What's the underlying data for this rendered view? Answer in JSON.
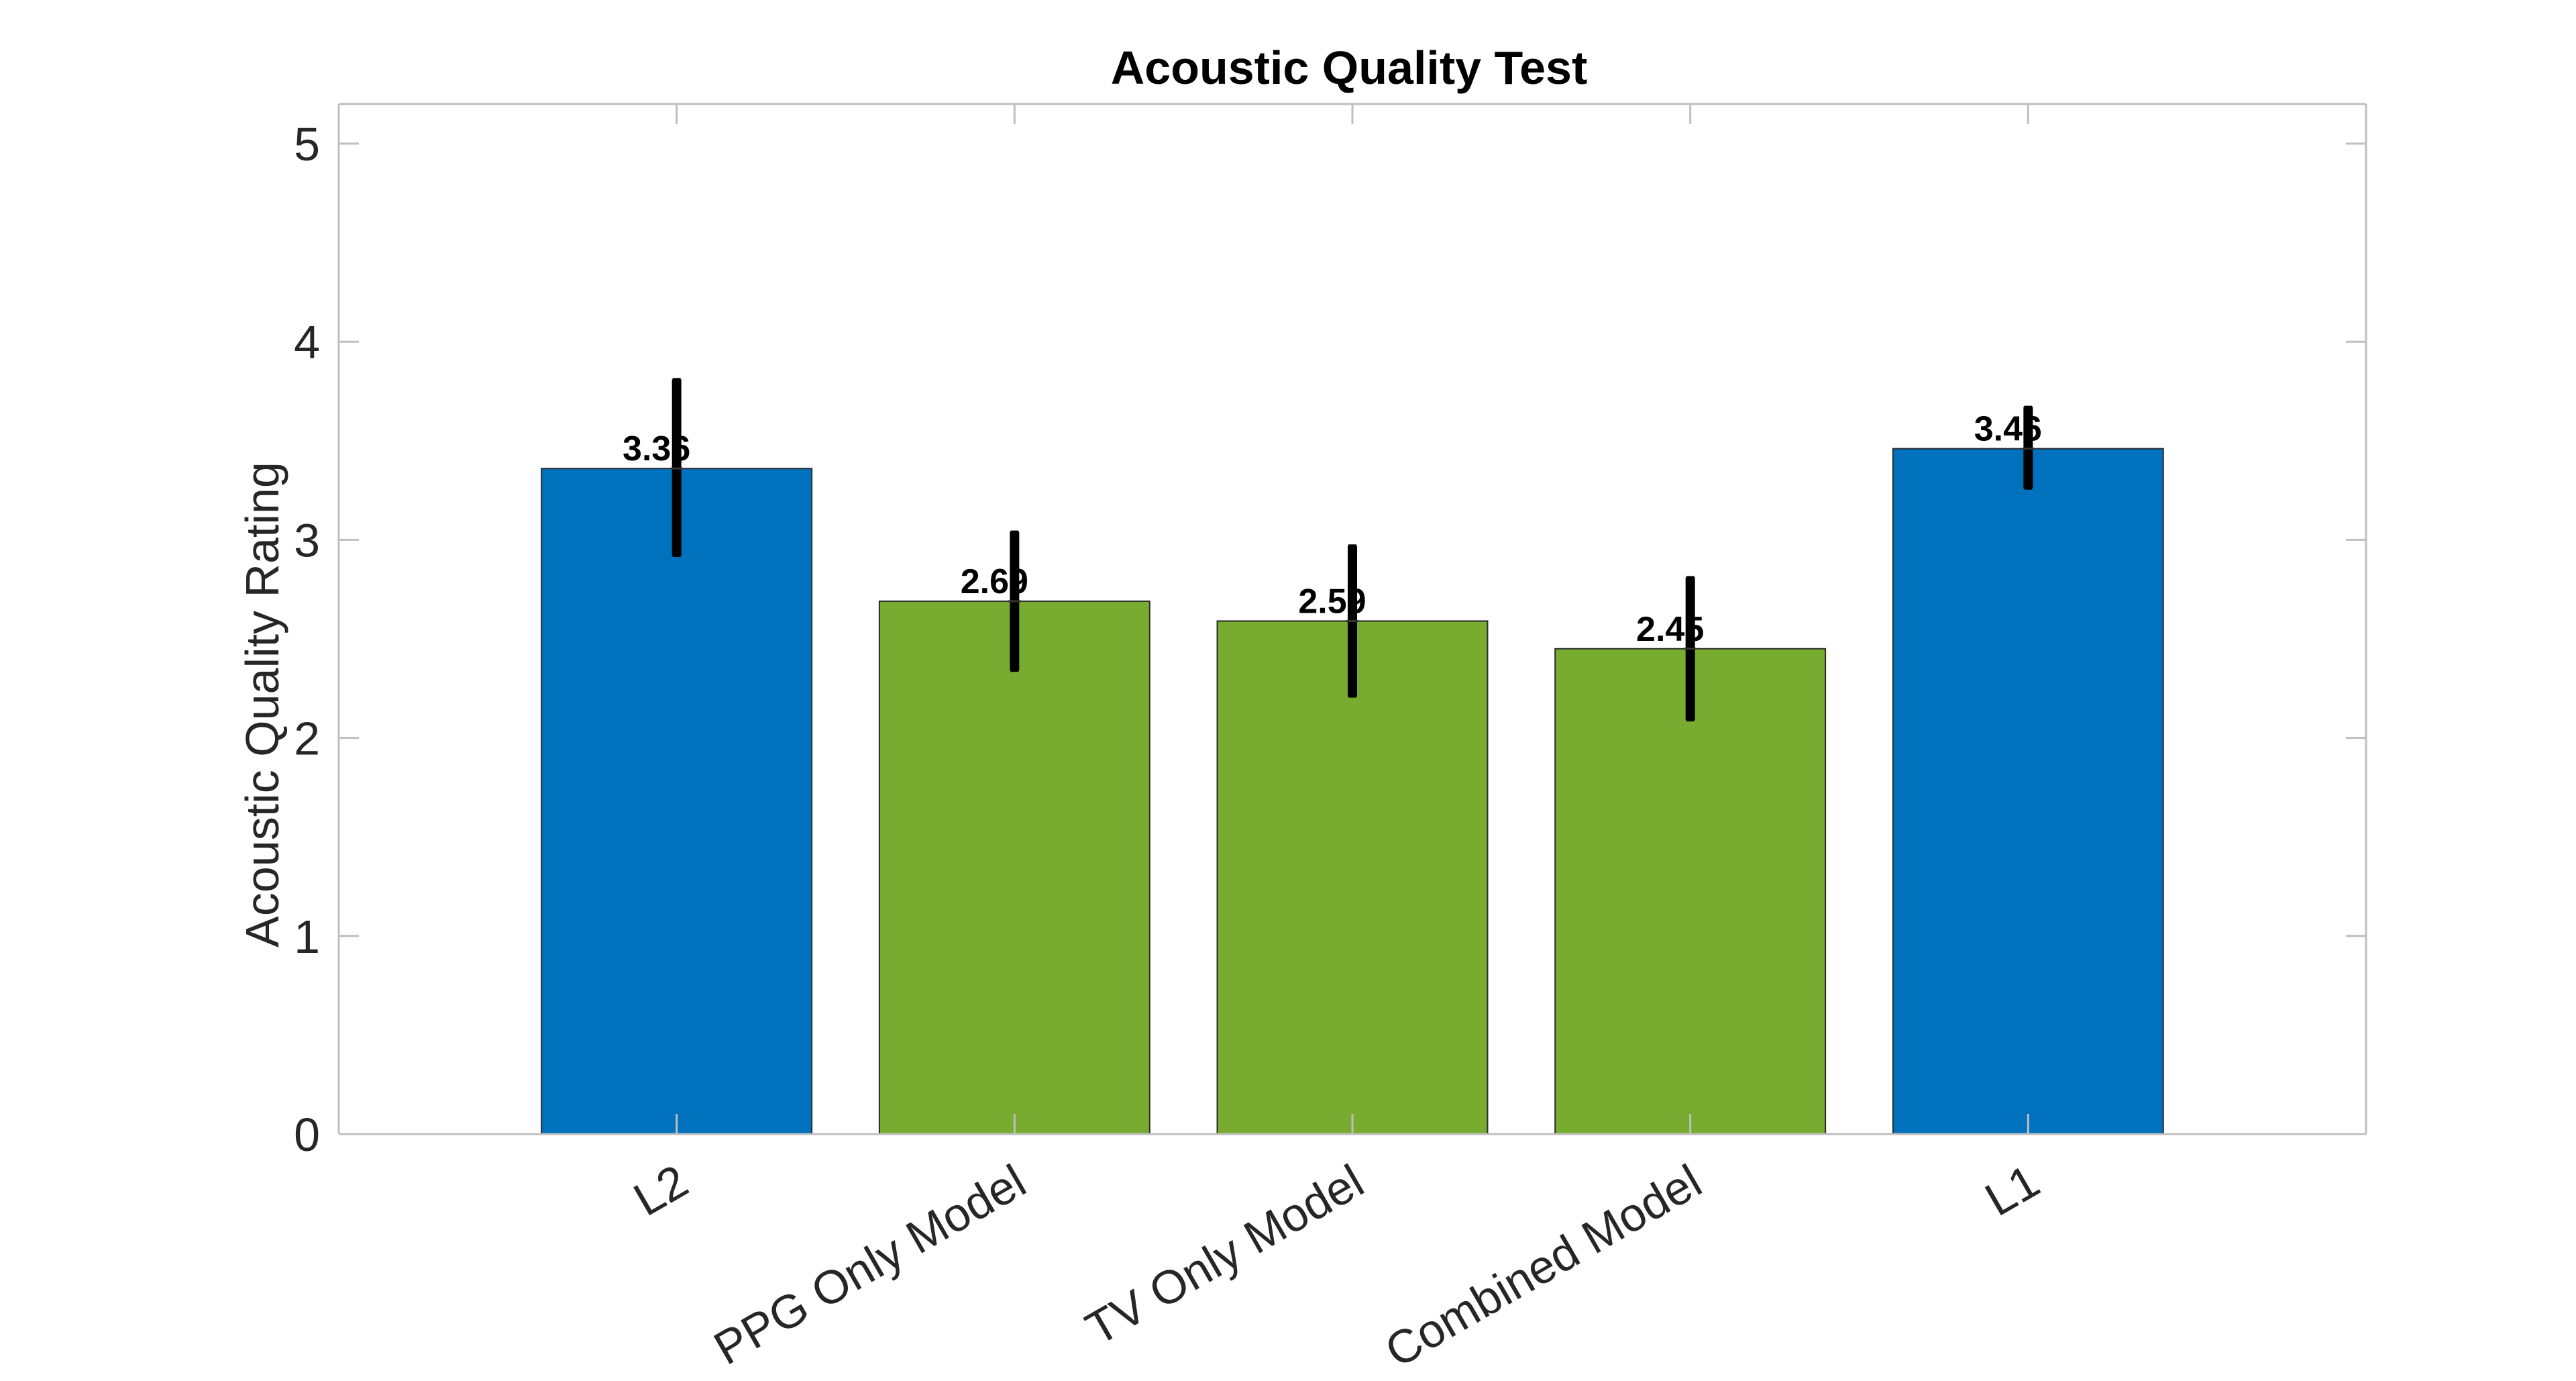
{
  "chart_data": {
    "type": "bar",
    "title": "Acoustic Quality Test",
    "xlabel": "",
    "ylabel": "Acoustic Quality Rating",
    "ylim": [
      0,
      5.2
    ],
    "yticks": [
      "0",
      "1",
      "2",
      "3",
      "4",
      "5"
    ],
    "grid": false,
    "legend": "none",
    "categories": [
      "L2",
      "PPG Only Model",
      "TV Only Model",
      "Combined Model",
      "L1"
    ],
    "values": [
      3.36,
      2.69,
      2.59,
      2.45,
      3.46
    ],
    "value_labels": [
      "3.36",
      "2.69",
      "2.59",
      "2.45",
      "3.46"
    ],
    "error_bars": [
      {
        "low": 2.92,
        "high": 3.81
      },
      {
        "low": 2.34,
        "high": 3.04
      },
      {
        "low": 2.21,
        "high": 2.97
      },
      {
        "low": 2.09,
        "high": 2.81
      },
      {
        "low": 3.26,
        "high": 3.67
      }
    ],
    "bar_colors": [
      "#0072BD",
      "#77AC30",
      "#77AC30",
      "#77AC30",
      "#0072BD"
    ],
    "error_bar_color": "#000000",
    "axis_color": "#262626",
    "box_color": "#bfbfbf"
  }
}
